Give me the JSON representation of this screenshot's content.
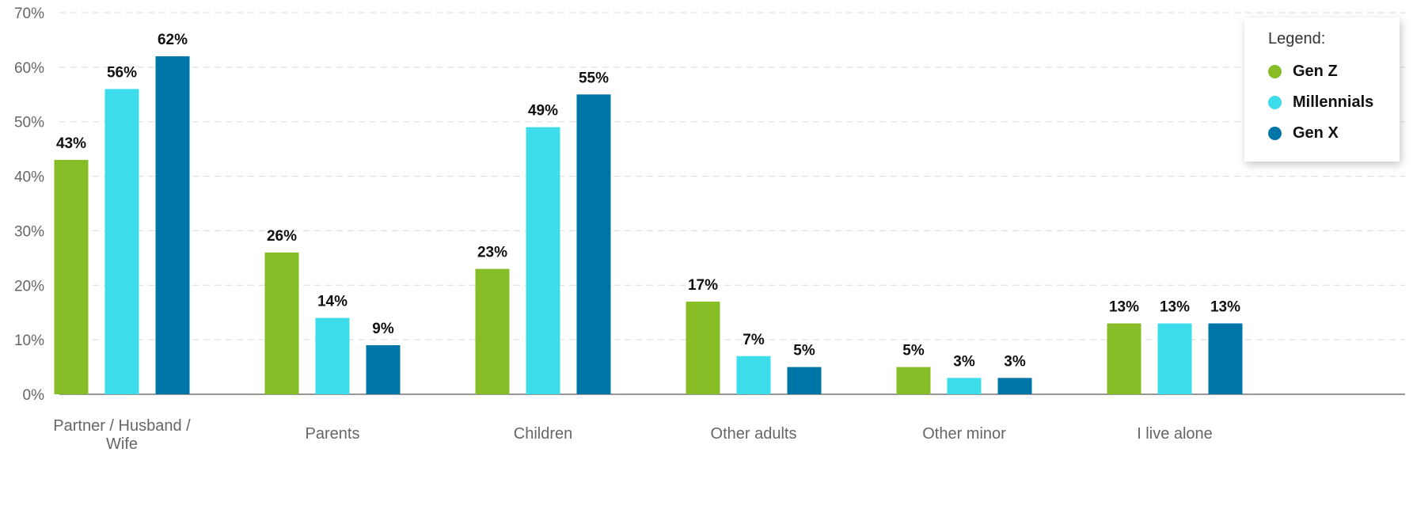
{
  "chart_data": {
    "type": "bar",
    "categories": [
      "Partner / Husband / Wife",
      "Parents",
      "Children",
      "Other adults",
      "Other minor",
      "I live alone"
    ],
    "series": [
      {
        "name": "Gen Z",
        "color": "#86BC25",
        "values": [
          43,
          26,
          23,
          17,
          5,
          13
        ]
      },
      {
        "name": "Millennials",
        "color": "#3DDCEB",
        "values": [
          56,
          14,
          49,
          7,
          3,
          13
        ]
      },
      {
        "name": "Gen X",
        "color": "#0076A8",
        "values": [
          62,
          9,
          55,
          5,
          3,
          13
        ]
      }
    ],
    "ylim": [
      0,
      70
    ],
    "yticks": [
      0,
      10,
      20,
      30,
      40,
      50,
      60,
      70
    ],
    "ytick_labels": [
      "0%",
      "10%",
      "20%",
      "30%",
      "40%",
      "50%",
      "60%",
      "70%"
    ],
    "value_suffix": "%",
    "grid": true,
    "legend": {
      "title": "Legend:",
      "placement": "top-right"
    },
    "title": "",
    "xlabel": "",
    "ylabel": ""
  }
}
